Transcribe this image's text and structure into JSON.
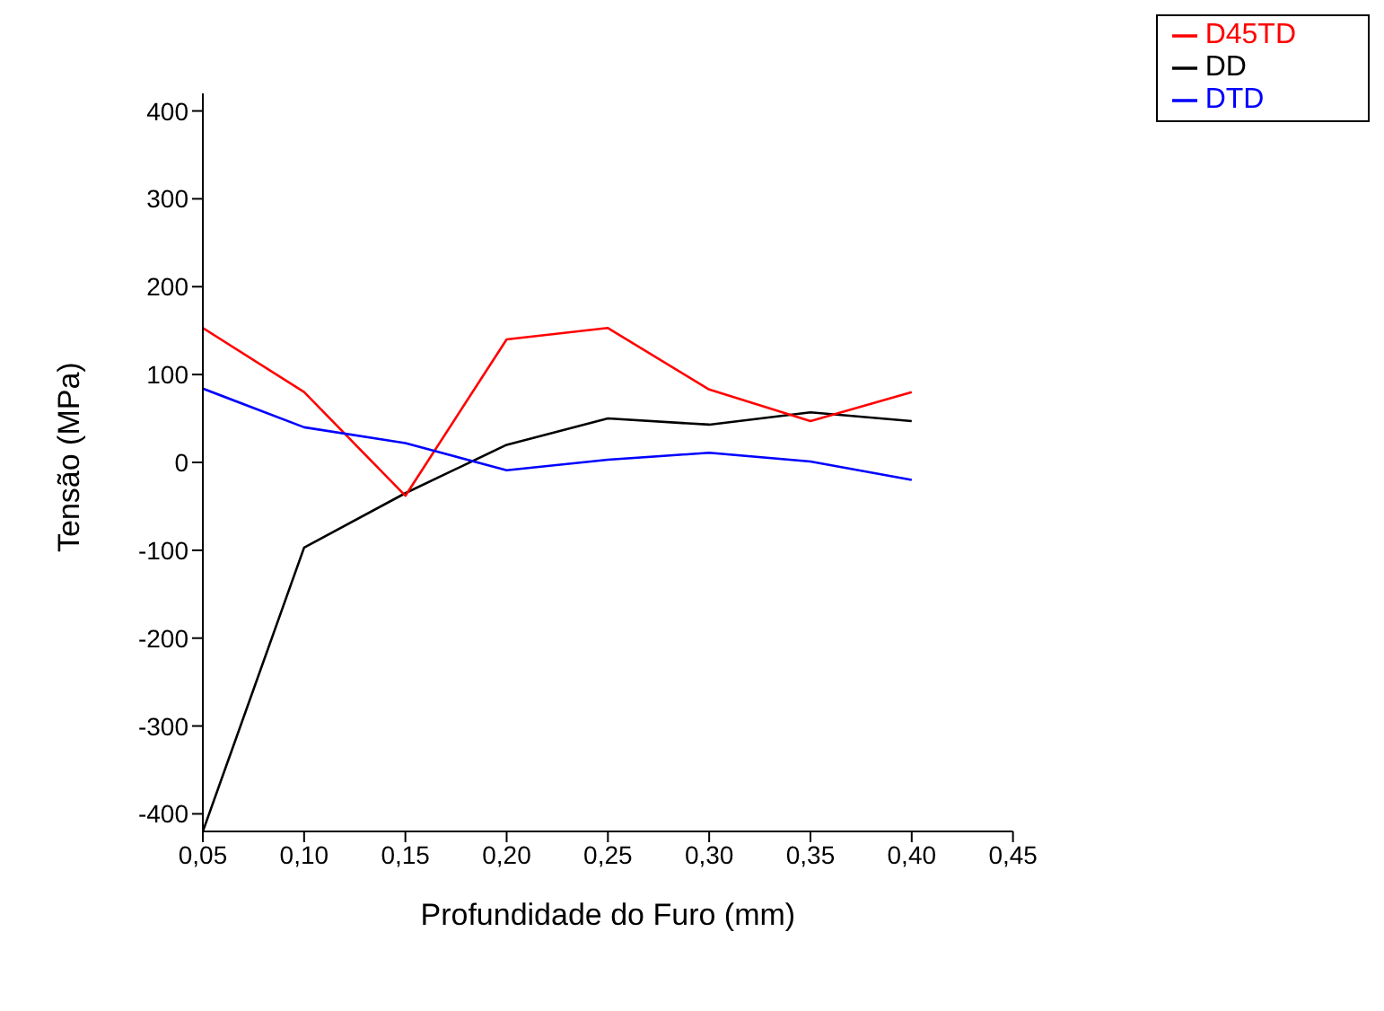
{
  "chart_data": {
    "type": "line",
    "xlabel": "Profundidade do Furo (mm)",
    "ylabel": "Tensão (MPa)",
    "x": [
      0.05,
      0.1,
      0.15,
      0.2,
      0.25,
      0.3,
      0.35,
      0.4
    ],
    "series": [
      {
        "name": "DD",
        "color": "#000000",
        "values": [
          -420,
          -97,
          -35,
          20,
          50,
          43,
          57,
          47
        ]
      },
      {
        "name": "D45TD",
        "color": "#ff0000",
        "values": [
          153,
          80,
          -38,
          140,
          153,
          83,
          47,
          80
        ]
      },
      {
        "name": "DTD",
        "color": "#0000ff",
        "values": [
          84,
          40,
          22,
          -9,
          3,
          11,
          1,
          -20
        ]
      }
    ],
    "xlim": [
      0.05,
      0.45
    ],
    "xticks": [
      {
        "value": 0.05,
        "label": "0,05"
      },
      {
        "value": 0.1,
        "label": "0,10"
      },
      {
        "value": 0.15,
        "label": "0,15"
      },
      {
        "value": 0.2,
        "label": "0,20"
      },
      {
        "value": 0.25,
        "label": "0,25"
      },
      {
        "value": 0.3,
        "label": "0,30"
      },
      {
        "value": 0.35,
        "label": "0,35"
      },
      {
        "value": 0.4,
        "label": "0,40"
      },
      {
        "value": 0.45,
        "label": "0,45"
      }
    ],
    "ylim": [
      -420,
      420
    ],
    "yticks": [
      -400,
      -300,
      -200,
      -100,
      0,
      100,
      200,
      300,
      400
    ],
    "grid": false,
    "legend": "top right",
    "marker": "none",
    "line_style": "solid"
  }
}
